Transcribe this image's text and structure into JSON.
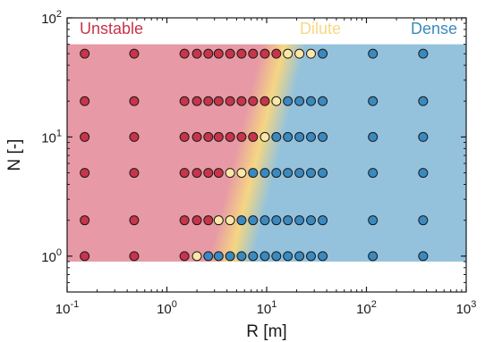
{
  "chart_data": {
    "type": "scatter",
    "xlabel": "R [m]",
    "ylabel": "N [-]",
    "x_scale": "log",
    "y_scale": "log",
    "xlim": [
      0.1,
      1000
    ],
    "ylim": [
      0.5,
      100
    ],
    "x_ticks": [
      {
        "value": 0.1,
        "base": "10",
        "exp": "-1"
      },
      {
        "value": 1,
        "base": "10",
        "exp": "0"
      },
      {
        "value": 10,
        "base": "10",
        "exp": "1"
      },
      {
        "value": 100,
        "base": "10",
        "exp": "2"
      },
      {
        "value": 1000,
        "base": "10",
        "exp": "3"
      }
    ],
    "y_ticks": [
      {
        "value": 1,
        "base": "10",
        "exp": "0"
      },
      {
        "value": 10,
        "base": "10",
        "exp": "1"
      },
      {
        "value": 100,
        "base": "10",
        "exp": "2"
      }
    ],
    "grid": false,
    "shaded_region": {
      "x": [
        0.1,
        1000
      ],
      "y": [
        0.9,
        60
      ]
    },
    "regions": [
      {
        "name": "Unstable",
        "color": "#c8344a",
        "fill": "#e79aa5",
        "label_position": "top-left"
      },
      {
        "name": "Dilute",
        "color": "#f7d882",
        "fill": "#f5d682",
        "label_position": "top-center"
      },
      {
        "name": "Dense",
        "color": "#3a8ac0",
        "fill": "#94c2dd",
        "label_position": "top-right"
      }
    ],
    "boundary": {
      "points": [
        [
          4.5,
          1
        ],
        [
          15,
          60
        ]
      ]
    },
    "x_values": [
      0.15,
      0.47,
      1.5,
      2,
      2.6,
      3.3,
      4.3,
      5.6,
      7.3,
      9.6,
      12.5,
      16.3,
      21.3,
      27.8,
      36.4,
      116,
      370
    ],
    "series": [
      {
        "name": "Unstable",
        "color": "#c8344a",
        "points": [
          [
            0.15,
            1
          ],
          [
            0.47,
            1
          ],
          [
            1.5,
            1
          ],
          [
            0.15,
            2
          ],
          [
            0.47,
            2
          ],
          [
            1.5,
            2
          ],
          [
            2,
            2
          ],
          [
            2.6,
            2
          ],
          [
            0.15,
            5
          ],
          [
            0.47,
            5
          ],
          [
            1.5,
            5
          ],
          [
            2,
            5
          ],
          [
            2.6,
            5
          ],
          [
            3.3,
            5
          ],
          [
            0.15,
            10
          ],
          [
            0.47,
            10
          ],
          [
            1.5,
            10
          ],
          [
            2,
            10
          ],
          [
            2.6,
            10
          ],
          [
            3.3,
            10
          ],
          [
            4.3,
            10
          ],
          [
            5.6,
            10
          ],
          [
            7.3,
            10
          ],
          [
            0.15,
            20
          ],
          [
            0.47,
            20
          ],
          [
            1.5,
            20
          ],
          [
            2,
            20
          ],
          [
            2.6,
            20
          ],
          [
            3.3,
            20
          ],
          [
            4.3,
            20
          ],
          [
            5.6,
            20
          ],
          [
            7.3,
            20
          ],
          [
            9.6,
            20
          ],
          [
            0.15,
            50
          ],
          [
            0.47,
            50
          ],
          [
            1.5,
            50
          ],
          [
            2,
            50
          ],
          [
            2.6,
            50
          ],
          [
            3.3,
            50
          ],
          [
            4.3,
            50
          ],
          [
            5.6,
            50
          ],
          [
            7.3,
            50
          ],
          [
            9.6,
            50
          ],
          [
            12.5,
            50
          ]
        ]
      },
      {
        "name": "Dilute",
        "color": "#fde7a6",
        "points": [
          [
            2,
            1
          ],
          [
            3.3,
            2
          ],
          [
            4.3,
            2
          ],
          [
            4.3,
            5
          ],
          [
            5.6,
            5
          ],
          [
            9.6,
            10
          ],
          [
            12.5,
            20
          ],
          [
            16.3,
            50
          ],
          [
            21.3,
            50
          ],
          [
            27.8,
            50
          ]
        ]
      },
      {
        "name": "Dense",
        "color": "#3a8ac0",
        "points": [
          [
            2.6,
            1
          ],
          [
            3.3,
            1
          ],
          [
            4.3,
            1
          ],
          [
            5.6,
            1
          ],
          [
            7.3,
            1
          ],
          [
            9.6,
            1
          ],
          [
            12.5,
            1
          ],
          [
            16.3,
            1
          ],
          [
            21.3,
            1
          ],
          [
            27.8,
            1
          ],
          [
            36.4,
            1
          ],
          [
            116,
            1
          ],
          [
            370,
            1
          ],
          [
            5.6,
            2
          ],
          [
            7.3,
            2
          ],
          [
            9.6,
            2
          ],
          [
            12.5,
            2
          ],
          [
            16.3,
            2
          ],
          [
            21.3,
            2
          ],
          [
            27.8,
            2
          ],
          [
            36.4,
            2
          ],
          [
            116,
            2
          ],
          [
            370,
            2
          ],
          [
            7.3,
            5
          ],
          [
            9.6,
            5
          ],
          [
            12.5,
            5
          ],
          [
            16.3,
            5
          ],
          [
            21.3,
            5
          ],
          [
            27.8,
            5
          ],
          [
            36.4,
            5
          ],
          [
            116,
            5
          ],
          [
            370,
            5
          ],
          [
            12.5,
            10
          ],
          [
            16.3,
            10
          ],
          [
            21.3,
            10
          ],
          [
            27.8,
            10
          ],
          [
            36.4,
            10
          ],
          [
            116,
            10
          ],
          [
            370,
            10
          ],
          [
            16.3,
            20
          ],
          [
            21.3,
            20
          ],
          [
            27.8,
            20
          ],
          [
            36.4,
            20
          ],
          [
            116,
            20
          ],
          [
            370,
            20
          ],
          [
            36.4,
            50
          ],
          [
            116,
            50
          ],
          [
            370,
            50
          ]
        ]
      }
    ]
  }
}
